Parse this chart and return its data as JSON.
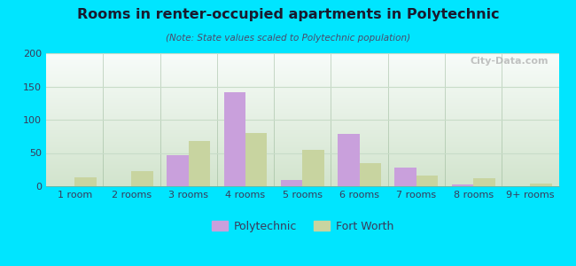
{
  "title": "Rooms in renter-occupied apartments in Polytechnic",
  "subtitle": "(Note: State values scaled to Polytechnic population)",
  "categories": [
    "1 room",
    "2 rooms",
    "3 rooms",
    "4 rooms",
    "5 rooms",
    "6 rooms",
    "7 rooms",
    "8 rooms",
    "9+ rooms"
  ],
  "polytechnic": [
    0,
    0,
    47,
    142,
    10,
    79,
    28,
    3,
    0
  ],
  "fort_worth": [
    13,
    23,
    68,
    80,
    55,
    35,
    16,
    12,
    4
  ],
  "polytechnic_color": "#c9a0dc",
  "fort_worth_color": "#c8d4a0",
  "ylim": [
    0,
    200
  ],
  "yticks": [
    0,
    50,
    100,
    150,
    200
  ],
  "bg_outer": "#00e5ff",
  "bg_plot_top": "#e8f5f0",
  "bg_plot_bottom": "#daecd8",
  "watermark": "City-Data.com",
  "bar_width": 0.38,
  "title_color": "#1a1a2e",
  "subtitle_color": "#4a4a6a",
  "tick_color": "#3a3a5a",
  "grid_color": "#c8dcc8"
}
